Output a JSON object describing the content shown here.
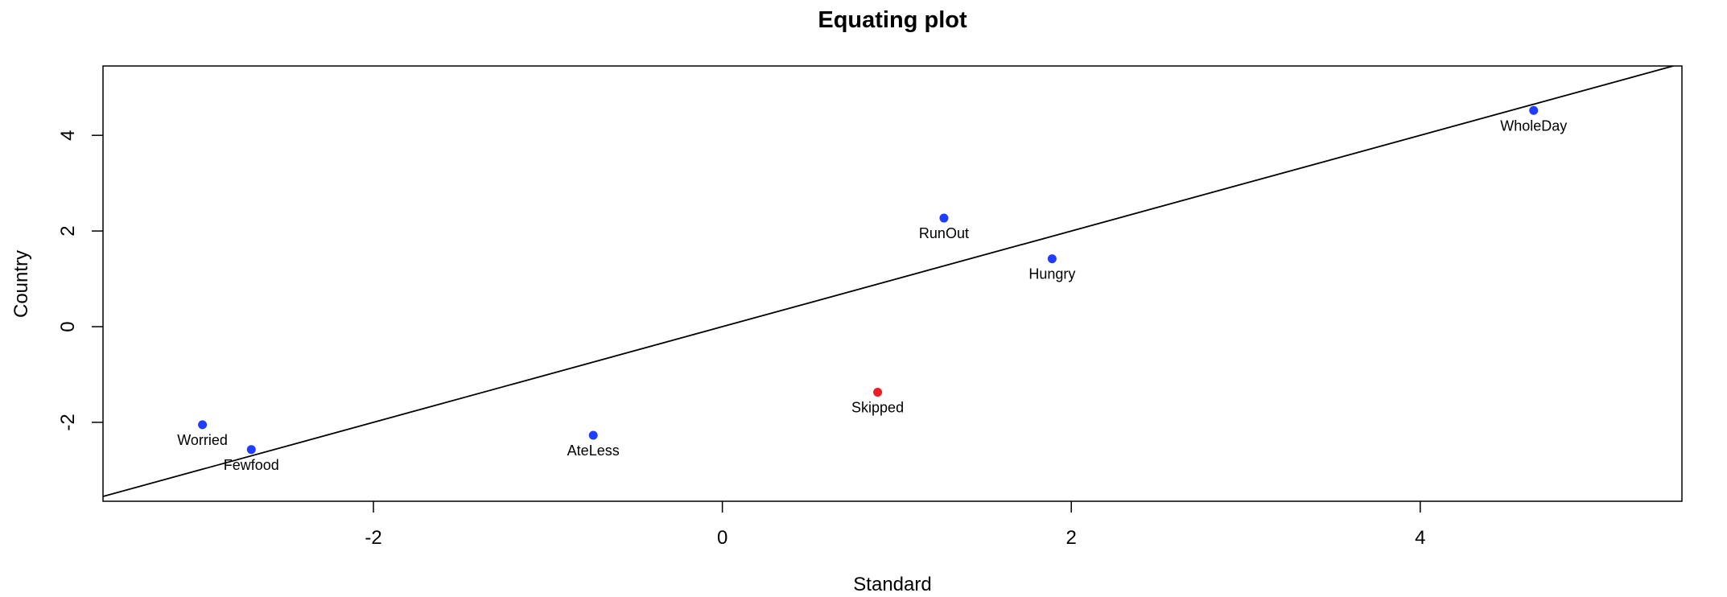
{
  "chart_data": {
    "type": "scatter",
    "title": "Equating plot",
    "xlabel": "Standard",
    "ylabel": "Country",
    "xlim": [
      -3.55,
      5.5
    ],
    "ylim": [
      -3.65,
      5.45
    ],
    "x_ticks": [
      -2,
      0,
      2,
      4
    ],
    "y_ticks": [
      -2,
      0,
      2,
      4
    ],
    "x_tick_labels": [
      "-2",
      "0",
      "2",
      "4"
    ],
    "y_tick_labels": [
      "-2",
      "0",
      "2",
      "4"
    ],
    "grid": false,
    "reference_line": {
      "slope": 1,
      "intercept": 0
    },
    "colors": {
      "anchor": "#1f3cff",
      "flagged": "#ee1c24",
      "axis": "#000000"
    },
    "points": [
      {
        "label": "Worried",
        "x": -2.98,
        "y": -2.05,
        "status": "anchor"
      },
      {
        "label": "Fewfood",
        "x": -2.7,
        "y": -2.57,
        "status": "anchor"
      },
      {
        "label": "AteLess",
        "x": -0.74,
        "y": -2.27,
        "status": "anchor"
      },
      {
        "label": "Skipped",
        "x": 0.89,
        "y": -1.37,
        "status": "flagged"
      },
      {
        "label": "RunOut",
        "x": 1.27,
        "y": 2.27,
        "status": "anchor"
      },
      {
        "label": "Hungry",
        "x": 1.89,
        "y": 1.42,
        "status": "anchor"
      },
      {
        "label": "WholeDay",
        "x": 4.65,
        "y": 4.52,
        "status": "anchor"
      }
    ]
  }
}
